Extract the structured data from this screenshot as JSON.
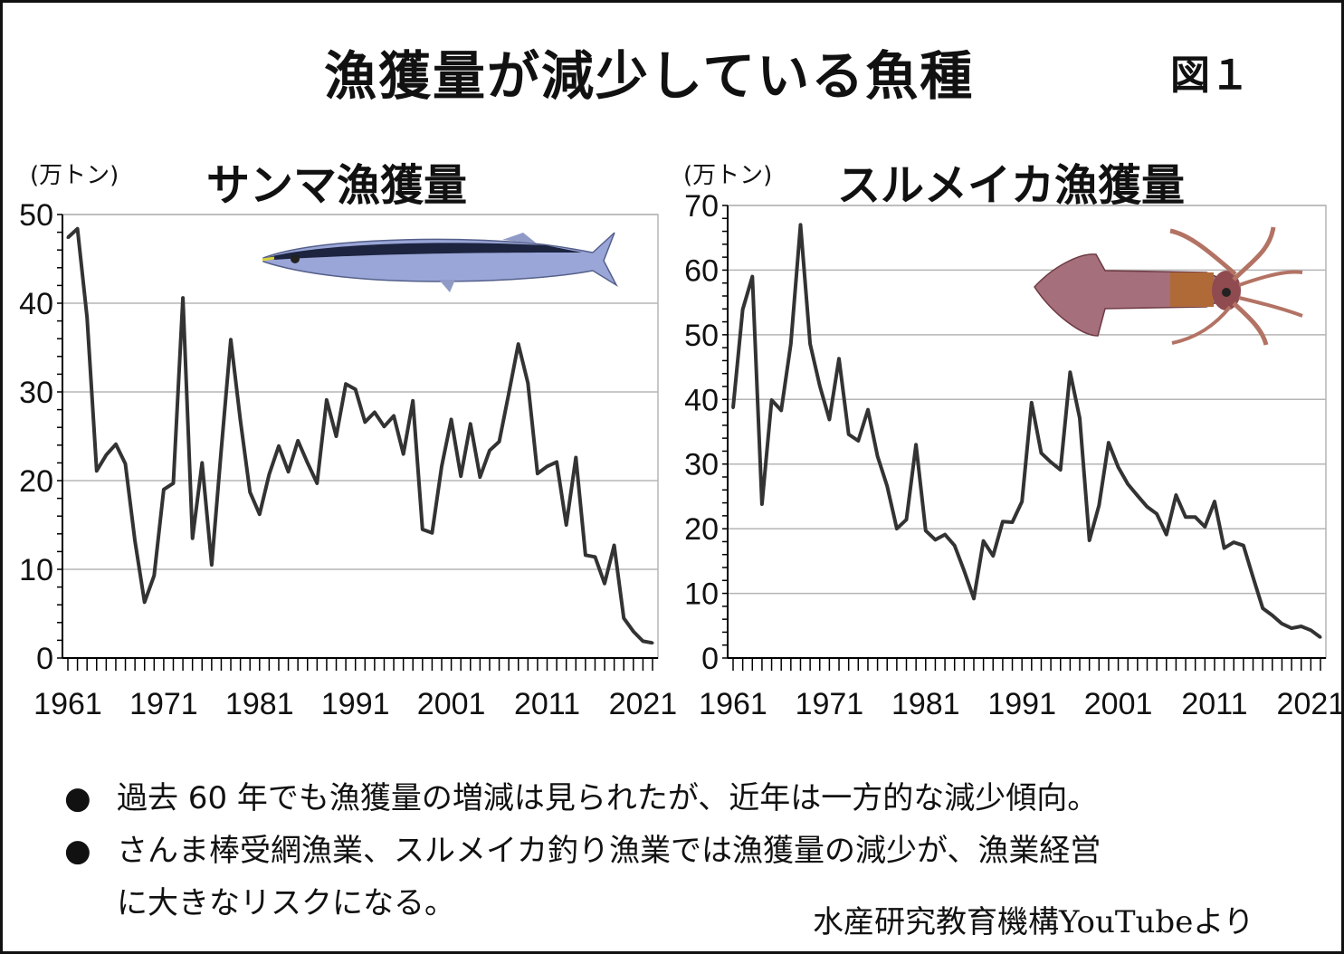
{
  "title": "漁獲量が減少している魚種",
  "figure_label": "図１",
  "colors": {
    "line": "#333333",
    "grid": "#b5b5b5",
    "axis": "#000000"
  },
  "chart_data": [
    {
      "type": "line",
      "title": "サンマ漁獲量",
      "unit": "(万トン)",
      "image": "saury-fish-image",
      "ylim": [
        0,
        50
      ],
      "y_ticks": [
        "0",
        "10",
        "20",
        "30",
        "40",
        "50"
      ],
      "x_tick_labels": [
        "1961",
        "1971",
        "1981",
        "1991",
        "2001",
        "2011",
        "2021"
      ],
      "x_range": [
        1961,
        2022
      ],
      "grid": true,
      "series": [
        {
          "x": [
            1961,
            1962,
            1963,
            1964,
            1965,
            1966,
            1967,
            1968,
            1969,
            1970,
            1971,
            1972,
            1973,
            1974,
            1975,
            1976,
            1977,
            1978,
            1979,
            1980,
            1981,
            1982,
            1983,
            1984,
            1985,
            1986,
            1987,
            1988,
            1989,
            1990,
            1991,
            1992,
            1993,
            1994,
            1995,
            1996,
            1997,
            1998,
            1999,
            2000,
            2001,
            2002,
            2003,
            2004,
            2005,
            2006,
            2007,
            2008,
            2009,
            2010,
            2011,
            2012,
            2013,
            2014,
            2015,
            2016,
            2017,
            2018,
            2019,
            2020,
            2021,
            2022
          ],
          "values": [
            47.4,
            48.4,
            38.4,
            21.1,
            22.9,
            24.1,
            21.9,
            13.2,
            6.3,
            9.3,
            19.0,
            19.7,
            40.6,
            13.5,
            22.0,
            10.5,
            23.4,
            35.9,
            26.8,
            18.7,
            16.2,
            20.7,
            23.9,
            21.0,
            24.5,
            22.0,
            19.7,
            29.1,
            25.0,
            30.9,
            30.3,
            26.6,
            27.7,
            26.1,
            27.3,
            23.0,
            29.0,
            14.5,
            14.1,
            21.6,
            26.9,
            20.5,
            26.4,
            20.4,
            23.4,
            24.4,
            29.8,
            35.4,
            31.0,
            20.8,
            21.6,
            22.1,
            15.0,
            22.6,
            11.6,
            11.4,
            8.4,
            12.7,
            4.5,
            3.0,
            1.9,
            1.7
          ]
        }
      ]
    },
    {
      "type": "line",
      "title": "スルメイカ漁獲量",
      "unit": "(万トン)",
      "image": "squid-image",
      "ylim": [
        0,
        70
      ],
      "y_ticks": [
        "0",
        "10",
        "20",
        "30",
        "40",
        "50",
        "60",
        "70"
      ],
      "x_tick_labels": [
        "1961",
        "1971",
        "1981",
        "1991",
        "2001",
        "2011",
        "2021"
      ],
      "x_range": [
        1961,
        2022
      ],
      "grid": true,
      "series": [
        {
          "x": [
            1961,
            1962,
            1963,
            1964,
            1965,
            1966,
            1967,
            1968,
            1969,
            1970,
            1971,
            1972,
            1973,
            1974,
            1975,
            1976,
            1977,
            1978,
            1979,
            1980,
            1981,
            1982,
            1983,
            1984,
            1985,
            1986,
            1987,
            1988,
            1989,
            1990,
            1991,
            1992,
            1993,
            1994,
            1995,
            1996,
            1997,
            1998,
            1999,
            2000,
            2001,
            2002,
            2003,
            2004,
            2005,
            2006,
            2007,
            2008,
            2009,
            2010,
            2011,
            2012,
            2013,
            2014,
            2015,
            2016,
            2017,
            2018,
            2019,
            2020,
            2021,
            2022
          ],
          "values": [
            38.7,
            53.9,
            59.0,
            23.8,
            39.9,
            38.3,
            48.6,
            67.0,
            48.6,
            42.1,
            36.9,
            46.3,
            34.6,
            33.6,
            38.4,
            31.2,
            26.6,
            20.0,
            21.4,
            33.0,
            19.7,
            18.3,
            19.1,
            17.4,
            13.5,
            9.2,
            18.1,
            15.8,
            21.1,
            21.0,
            24.2,
            39.5,
            31.7,
            30.3,
            29.1,
            44.2,
            37.1,
            18.2,
            23.6,
            33.3,
            29.5,
            26.9,
            25.1,
            23.4,
            22.3,
            19.1,
            25.2,
            21.8,
            21.8,
            20.3,
            24.2,
            17.0,
            17.9,
            17.4,
            12.5,
            7.7,
            6.6,
            5.3,
            4.6,
            4.9,
            4.3,
            3.2
          ]
        }
      ]
    }
  ],
  "bullets": [
    {
      "marker": "●",
      "lines": [
        "過去 60 年でも漁獲量の増減は見られたが、近年は一方的な減少傾向。"
      ]
    },
    {
      "marker": "●",
      "lines": [
        "さんま棒受網漁業、スルメイカ釣り漁業では漁獲量の減少が、漁業経営",
        "に大きなリスクになる。"
      ]
    }
  ],
  "source": "水産研究教育機構YouTubeより"
}
